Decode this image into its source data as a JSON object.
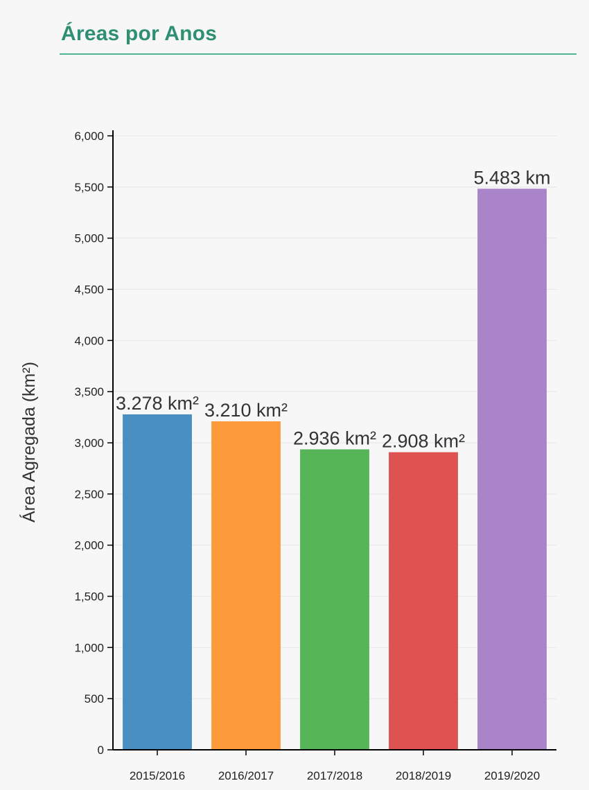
{
  "panel": {
    "title": "Áreas por Anos",
    "accent_color": "#2f8f72",
    "rule_color": "#4db394"
  },
  "chart_data": {
    "type": "bar",
    "categories": [
      "2015/2016",
      "2016/2017",
      "2017/2018",
      "2018/2019",
      "2019/2020"
    ],
    "values": [
      3278,
      3210,
      2936,
      2908,
      5483
    ],
    "data_labels": [
      "3.278 km²",
      "3.210 km²",
      "2.936 km²",
      "2.908 km²",
      "5.483 km"
    ],
    "colors": [
      "#4a8fc1",
      "#fd9a3a",
      "#56b556",
      "#de5252",
      "#a984c9"
    ],
    "ylabel": "Área Agregada (km²)",
    "xlabel": "",
    "ylim": [
      0,
      6000
    ],
    "yticks": [
      0,
      500,
      1000,
      1500,
      2000,
      2500,
      3000,
      3500,
      4000,
      4500,
      5000,
      5500,
      6000
    ],
    "ytick_labels": [
      "0",
      "500",
      "1,000",
      "1,500",
      "2,000",
      "2,500",
      "3,000",
      "3,500",
      "4,000",
      "4,500",
      "5,000",
      "5,500",
      "6,000"
    ],
    "grid": true,
    "legend": "none"
  }
}
